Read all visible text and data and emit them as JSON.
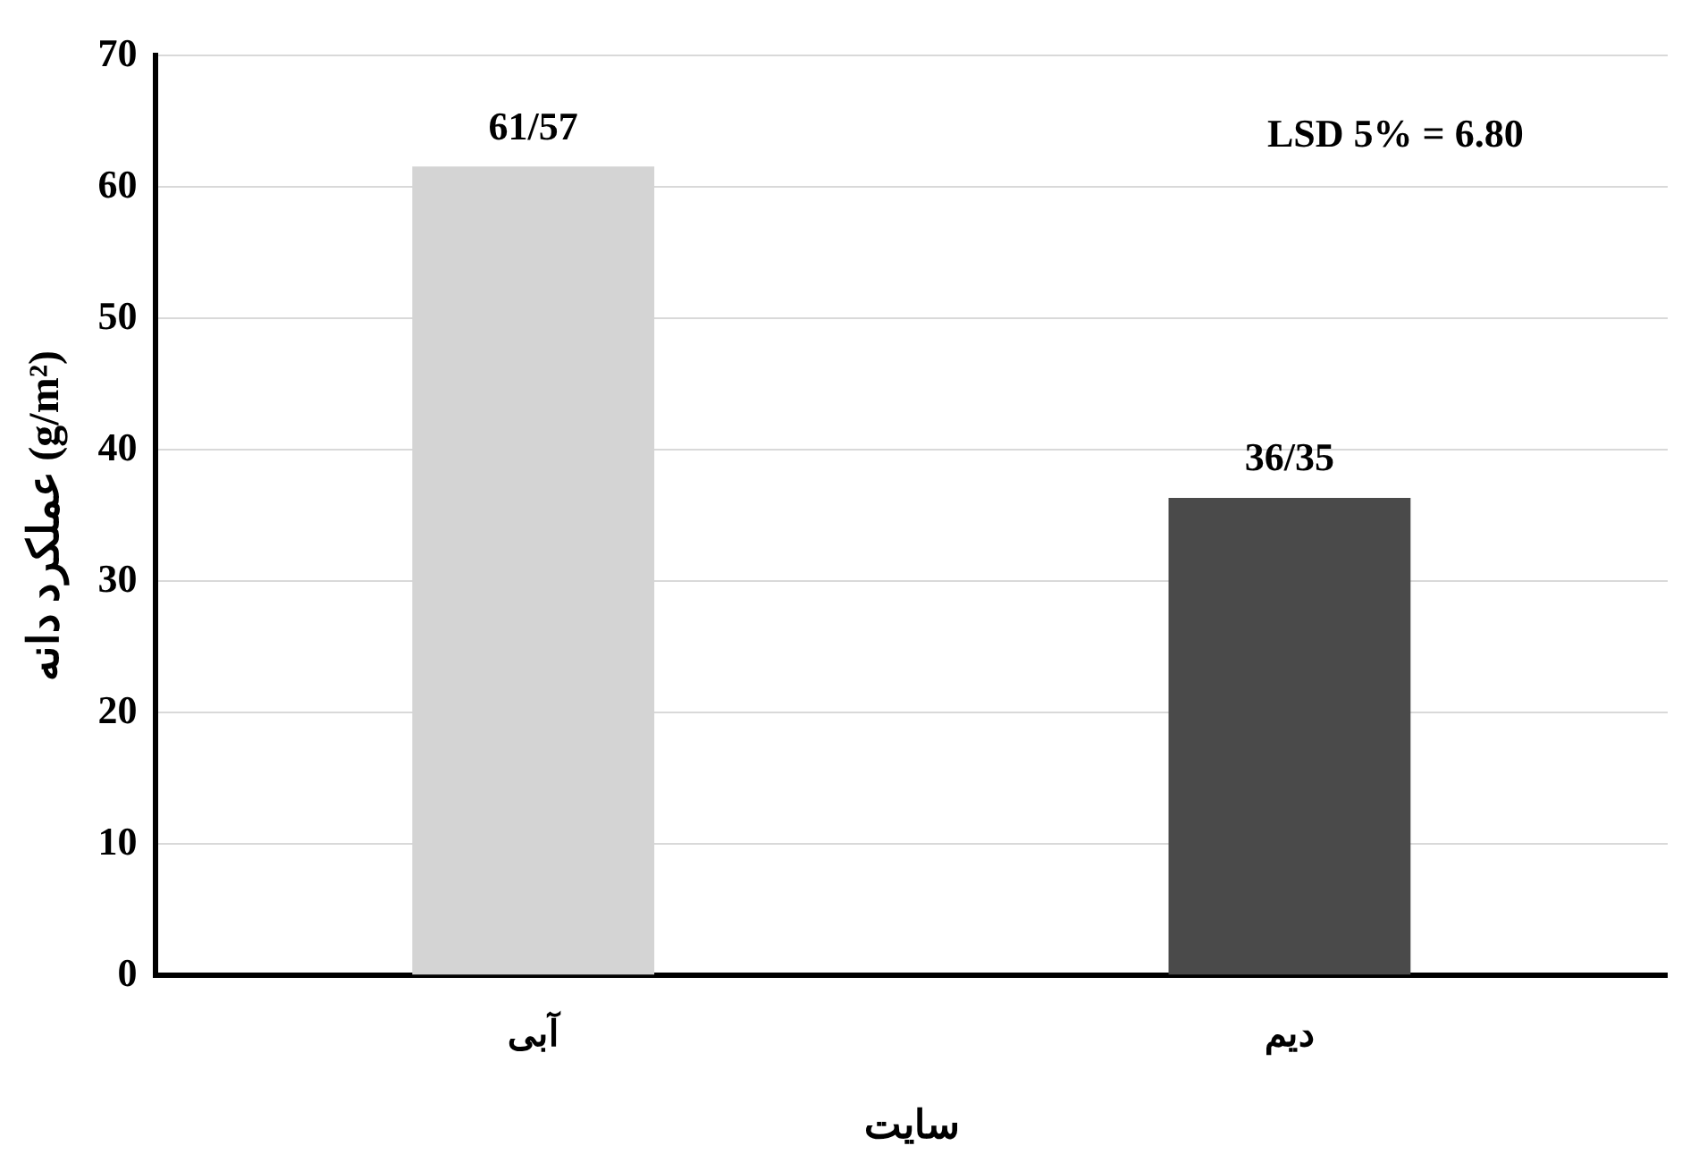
{
  "chart_data": {
    "type": "bar",
    "xlabel": "سایت",
    "ylabel": "عملکرد دانه (g/m²)",
    "categories": [
      "آبی",
      "دیم"
    ],
    "values": [
      61.57,
      36.35
    ],
    "value_labels": [
      "61/57",
      "36/35"
    ],
    "colors": [
      "#d4d4d4",
      "#4a4a4a"
    ],
    "ylim": [
      0,
      70
    ],
    "yticks": [
      0,
      10,
      20,
      30,
      40,
      50,
      60,
      70
    ],
    "grid": "y",
    "annotations": [
      "LSD 5% = 6.80"
    ]
  }
}
